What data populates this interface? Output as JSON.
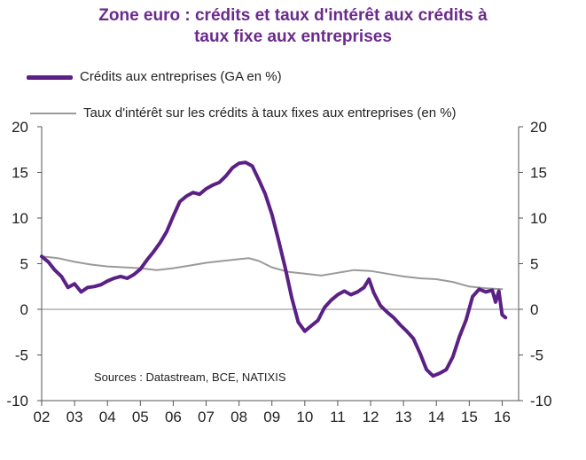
{
  "chart_data": {
    "type": "line",
    "title_line1": "Zone euro : crédits et taux d'intérêt aux crédits à",
    "title_line2": "taux fixe aux entreprises",
    "source": "Sources : Datastream, BCE, NATIXIS",
    "ylim": [
      -10,
      20
    ],
    "yticks": [
      "20",
      "15",
      "10",
      "5",
      "0",
      "-5",
      "-10"
    ],
    "yticks_right": [
      "20",
      "15",
      "10",
      "5",
      "0",
      "-5",
      "-10"
    ],
    "xlim": [
      2002,
      2016.5
    ],
    "xticks": [
      "02",
      "03",
      "04",
      "05",
      "06",
      "07",
      "08",
      "09",
      "10",
      "11",
      "12",
      "13",
      "14",
      "15",
      "16"
    ],
    "grid": false,
    "legend_position": "top-left",
    "series": [
      {
        "name": "Crédits aux entreprises (GA en %)",
        "color": "#5b2086",
        "points": [
          [
            2002.0,
            5.8
          ],
          [
            2002.2,
            5.2
          ],
          [
            2002.4,
            4.3
          ],
          [
            2002.6,
            3.6
          ],
          [
            2002.8,
            2.4
          ],
          [
            2003.0,
            2.8
          ],
          [
            2003.2,
            1.9
          ],
          [
            2003.4,
            2.4
          ],
          [
            2003.6,
            2.5
          ],
          [
            2003.8,
            2.7
          ],
          [
            2004.0,
            3.1
          ],
          [
            2004.2,
            3.4
          ],
          [
            2004.4,
            3.6
          ],
          [
            2004.6,
            3.4
          ],
          [
            2004.8,
            3.8
          ],
          [
            2005.0,
            4.4
          ],
          [
            2005.2,
            5.4
          ],
          [
            2005.4,
            6.3
          ],
          [
            2005.6,
            7.3
          ],
          [
            2005.8,
            8.5
          ],
          [
            2006.0,
            10.2
          ],
          [
            2006.2,
            11.8
          ],
          [
            2006.4,
            12.4
          ],
          [
            2006.6,
            12.8
          ],
          [
            2006.8,
            12.6
          ],
          [
            2007.0,
            13.2
          ],
          [
            2007.2,
            13.6
          ],
          [
            2007.4,
            13.9
          ],
          [
            2007.6,
            14.6
          ],
          [
            2007.8,
            15.5
          ],
          [
            2008.0,
            16.0
          ],
          [
            2008.2,
            16.1
          ],
          [
            2008.4,
            15.7
          ],
          [
            2008.6,
            14.2
          ],
          [
            2008.8,
            12.6
          ],
          [
            2009.0,
            10.4
          ],
          [
            2009.2,
            7.6
          ],
          [
            2009.4,
            4.6
          ],
          [
            2009.6,
            1.3
          ],
          [
            2009.8,
            -1.4
          ],
          [
            2010.0,
            -2.4
          ],
          [
            2010.2,
            -1.8
          ],
          [
            2010.4,
            -1.2
          ],
          [
            2010.6,
            0.2
          ],
          [
            2010.8,
            1.0
          ],
          [
            2011.0,
            1.6
          ],
          [
            2011.2,
            2.0
          ],
          [
            2011.4,
            1.6
          ],
          [
            2011.6,
            1.9
          ],
          [
            2011.8,
            2.4
          ],
          [
            2011.95,
            3.3
          ],
          [
            2012.1,
            1.8
          ],
          [
            2012.3,
            0.4
          ],
          [
            2012.5,
            -0.3
          ],
          [
            2012.7,
            -0.9
          ],
          [
            2012.9,
            -1.7
          ],
          [
            2013.1,
            -2.4
          ],
          [
            2013.3,
            -3.2
          ],
          [
            2013.5,
            -4.8
          ],
          [
            2013.7,
            -6.6
          ],
          [
            2013.9,
            -7.3
          ],
          [
            2014.1,
            -7.0
          ],
          [
            2014.3,
            -6.6
          ],
          [
            2014.5,
            -5.2
          ],
          [
            2014.7,
            -3.0
          ],
          [
            2014.9,
            -1.2
          ],
          [
            2015.1,
            1.4
          ],
          [
            2015.3,
            2.2
          ],
          [
            2015.5,
            1.9
          ],
          [
            2015.7,
            2.1
          ],
          [
            2015.8,
            0.8
          ],
          [
            2015.9,
            2.0
          ],
          [
            2016.0,
            -0.6
          ],
          [
            2016.1,
            -0.9
          ]
        ]
      },
      {
        "name": "Taux d'intérêt sur les crédits à taux fixes aux entreprises (en %)",
        "color": "#9a9a9a",
        "points": [
          [
            2002.0,
            5.8
          ],
          [
            2002.5,
            5.6
          ],
          [
            2003.0,
            5.2
          ],
          [
            2003.5,
            4.9
          ],
          [
            2004.0,
            4.7
          ],
          [
            2004.5,
            4.6
          ],
          [
            2005.0,
            4.5
          ],
          [
            2005.5,
            4.3
          ],
          [
            2006.0,
            4.5
          ],
          [
            2006.5,
            4.8
          ],
          [
            2007.0,
            5.1
          ],
          [
            2007.5,
            5.3
          ],
          [
            2008.0,
            5.5
          ],
          [
            2008.3,
            5.6
          ],
          [
            2008.6,
            5.3
          ],
          [
            2009.0,
            4.6
          ],
          [
            2009.5,
            4.1
          ],
          [
            2010.0,
            3.9
          ],
          [
            2010.5,
            3.7
          ],
          [
            2011.0,
            4.0
          ],
          [
            2011.5,
            4.3
          ],
          [
            2012.0,
            4.2
          ],
          [
            2012.5,
            3.9
          ],
          [
            2013.0,
            3.6
          ],
          [
            2013.5,
            3.4
          ],
          [
            2014.0,
            3.3
          ],
          [
            2014.5,
            3.0
          ],
          [
            2015.0,
            2.5
          ],
          [
            2015.5,
            2.3
          ],
          [
            2016.0,
            2.2
          ]
        ]
      }
    ]
  }
}
